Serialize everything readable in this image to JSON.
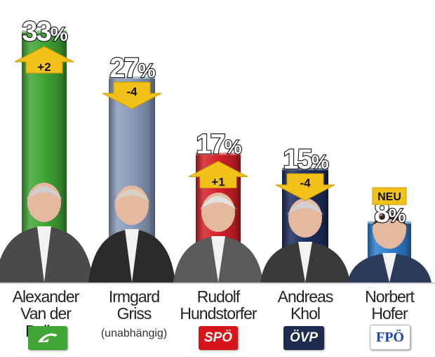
{
  "chart_data": {
    "type": "bar",
    "categories": [
      "Alexander Van der Bellen",
      "Irmgard Griss",
      "Rudolf Hundstorfer",
      "Andreas Khol",
      "Norbert Hofer"
    ],
    "values": [
      33,
      27,
      17,
      15,
      8
    ],
    "value_suffix": "%",
    "changes": [
      "+2",
      "-4",
      "+1",
      "-4",
      "NEU"
    ],
    "change_direction": [
      "up",
      "down",
      "up",
      "down",
      "new"
    ],
    "bar_colors": [
      "#3fa535",
      "#8a9bbd",
      "#d4212a",
      "#1d2f5e",
      "#2f7fd0"
    ],
    "title": "",
    "xlabel": "",
    "ylabel": "",
    "ylim": [
      0,
      35
    ],
    "grid": false,
    "legend": "none"
  },
  "candidates": [
    {
      "line1": "Alexander",
      "line2": "Van der Bellen",
      "party": "",
      "logo": "green-party-logo",
      "logo_bg": "#41a535",
      "logo_fg": "#ffffff"
    },
    {
      "line1": "Irmgard",
      "line2": "Griss",
      "party": "(unabhängig)",
      "logo": "",
      "logo_bg": "",
      "logo_fg": ""
    },
    {
      "line1": "Rudolf",
      "line2": "Hundstorfer",
      "party": "SPÖ",
      "logo": "spo-logo",
      "logo_bg": "#d7141a",
      "logo_fg": "#ffffff"
    },
    {
      "line1": "Andreas",
      "line2": "Khol",
      "party": "ÖVP",
      "logo": "ovp-logo",
      "logo_bg": "#1d2b4f",
      "logo_fg": "#ffffff"
    },
    {
      "line1": "Norbert",
      "line2": "Hofer",
      "party": "FPÖ",
      "logo": "fpo-logo",
      "logo_bg": "#ffffff",
      "logo_fg": "#1a47a8"
    }
  ],
  "arrow_color": "#f2c21b"
}
